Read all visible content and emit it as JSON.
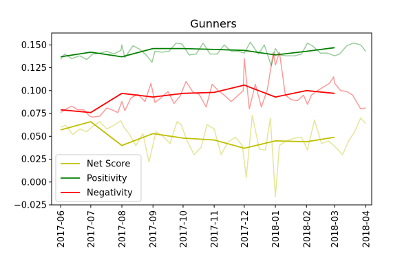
{
  "chart_data": {
    "type": "line",
    "title": "Gunners",
    "xlabel": "",
    "ylabel": "",
    "x_range": [
      "2017-05-23",
      "2018-04-07"
    ],
    "ylim": [
      -0.025,
      0.163
    ],
    "x_ticks": [
      "2017-06",
      "2017-07",
      "2017-08",
      "2017-09",
      "2017-10",
      "2017-11",
      "2017-12",
      "2018-01",
      "2018-02",
      "2018-03",
      "2018-04"
    ],
    "x_tick_dates": [
      "2017-06-01",
      "2017-07-01",
      "2017-08-01",
      "2017-09-01",
      "2017-10-01",
      "2017-11-01",
      "2017-12-01",
      "2018-01-01",
      "2018-02-01",
      "2018-03-01",
      "2018-04-01"
    ],
    "y_ticks": [
      -0.025,
      0.0,
      0.025,
      0.05,
      0.075,
      0.1,
      0.125,
      0.15
    ],
    "y_tick_labels": [
      "−0.025",
      "0.000",
      "0.025",
      "0.050",
      "0.075",
      "0.100",
      "0.125",
      "0.150"
    ],
    "legend": {
      "position": "lower-left",
      "entries": [
        "Net Score",
        "Positivity",
        "Negativity"
      ]
    },
    "grid": false,
    "series": [
      {
        "name": "Net Score",
        "kind": "raw",
        "color": "#bfbf00",
        "alpha": 0.4,
        "x": [
          "2017-06-01",
          "2017-06-06",
          "2017-06-13",
          "2017-06-20",
          "2017-06-27",
          "2017-07-03",
          "2017-07-10",
          "2017-07-17",
          "2017-07-24",
          "2017-07-31",
          "2017-08-03",
          "2017-08-08",
          "2017-08-15",
          "2017-08-22",
          "2017-08-28",
          "2017-09-04",
          "2017-09-11",
          "2017-09-18",
          "2017-09-25",
          "2017-09-29",
          "2017-10-05",
          "2017-10-12",
          "2017-10-19",
          "2017-10-25",
          "2017-11-01",
          "2017-11-08",
          "2017-11-15",
          "2017-11-22",
          "2017-11-29",
          "2017-12-03",
          "2017-12-09",
          "2017-12-16",
          "2017-12-22",
          "2017-12-27",
          "2018-01-01",
          "2018-01-05",
          "2018-01-12",
          "2018-01-20",
          "2018-01-27",
          "2018-02-02",
          "2018-02-09",
          "2018-02-16",
          "2018-02-23",
          "2018-03-02",
          "2018-03-09",
          "2018-03-15",
          "2018-03-21",
          "2018-03-27",
          "2018-04-01"
        ],
        "values": [
          0.06,
          0.062,
          0.052,
          0.058,
          0.055,
          0.061,
          0.066,
          0.058,
          0.062,
          0.067,
          0.06,
          0.053,
          0.04,
          0.053,
          0.022,
          0.055,
          0.05,
          0.042,
          0.066,
          0.063,
          0.045,
          0.03,
          0.038,
          0.063,
          0.058,
          0.03,
          0.044,
          0.049,
          0.04,
          0.005,
          0.073,
          0.036,
          0.035,
          0.07,
          -0.016,
          0.04,
          0.045,
          0.048,
          0.049,
          0.035,
          0.068,
          0.042,
          0.045,
          0.038,
          0.03,
          0.045,
          0.055,
          0.07,
          0.064
        ]
      },
      {
        "name": "Net Score",
        "kind": "smoothed",
        "color": "#bfbf00",
        "alpha": 1,
        "x": [
          "2017-06-01",
          "2017-07-01",
          "2017-08-01",
          "2017-09-01",
          "2017-10-01",
          "2017-11-01",
          "2017-12-01",
          "2018-01-01",
          "2018-02-01",
          "2018-03-01"
        ],
        "values": [
          0.057,
          0.066,
          0.04,
          0.053,
          0.048,
          0.046,
          0.037,
          0.045,
          0.044,
          0.049
        ]
      },
      {
        "name": "Positivity",
        "kind": "raw",
        "color": "#008000",
        "alpha": 0.4,
        "x": [
          "2017-06-01",
          "2017-06-05",
          "2017-06-12",
          "2017-06-20",
          "2017-06-27",
          "2017-07-03",
          "2017-07-10",
          "2017-07-17",
          "2017-07-24",
          "2017-07-31",
          "2017-08-01",
          "2017-08-04",
          "2017-08-12",
          "2017-08-19",
          "2017-08-26",
          "2017-08-31",
          "2017-09-03",
          "2017-09-10",
          "2017-09-17",
          "2017-09-24",
          "2017-09-30",
          "2017-10-07",
          "2017-10-14",
          "2017-10-21",
          "2017-10-28",
          "2017-11-04",
          "2017-11-11",
          "2017-11-18",
          "2017-11-25",
          "2017-12-01",
          "2017-12-07",
          "2017-12-15",
          "2017-12-21",
          "2017-12-28",
          "2018-01-01",
          "2018-01-05",
          "2018-01-12",
          "2018-01-20",
          "2018-01-27",
          "2018-02-02",
          "2018-02-08",
          "2018-02-15",
          "2018-02-22",
          "2018-03-01",
          "2018-03-06",
          "2018-03-13",
          "2018-03-20",
          "2018-03-27",
          "2018-04-01"
        ],
        "values": [
          0.134,
          0.14,
          0.135,
          0.138,
          0.134,
          0.14,
          0.141,
          0.143,
          0.14,
          0.144,
          0.15,
          0.136,
          0.149,
          0.145,
          0.138,
          0.131,
          0.143,
          0.142,
          0.143,
          0.152,
          0.151,
          0.139,
          0.14,
          0.152,
          0.14,
          0.14,
          0.15,
          0.143,
          0.143,
          0.141,
          0.153,
          0.14,
          0.15,
          0.127,
          0.146,
          0.139,
          0.138,
          0.138,
          0.14,
          0.152,
          0.148,
          0.141,
          0.141,
          0.138,
          0.14,
          0.149,
          0.152,
          0.15,
          0.143
        ]
      },
      {
        "name": "Positivity",
        "kind": "smoothed",
        "color": "#008000",
        "alpha": 1,
        "x": [
          "2017-06-01",
          "2017-07-01",
          "2017-08-01",
          "2017-09-01",
          "2017-10-01",
          "2017-11-01",
          "2017-12-01",
          "2018-01-01",
          "2018-02-01",
          "2018-03-01"
        ],
        "values": [
          0.137,
          0.142,
          0.137,
          0.146,
          0.146,
          0.145,
          0.144,
          0.139,
          0.143,
          0.147
        ]
      },
      {
        "name": "Negativity",
        "kind": "raw",
        "color": "#ff0000",
        "alpha": 0.4,
        "x": [
          "2017-06-01",
          "2017-06-05",
          "2017-06-12",
          "2017-06-18",
          "2017-06-24",
          "2017-06-30",
          "2017-07-03",
          "2017-07-10",
          "2017-07-17",
          "2017-07-22",
          "2017-07-28",
          "2017-08-01",
          "2017-08-04",
          "2017-08-10",
          "2017-08-17",
          "2017-08-24",
          "2017-08-30",
          "2017-09-03",
          "2017-09-09",
          "2017-09-16",
          "2017-09-22",
          "2017-09-28",
          "2017-10-04",
          "2017-10-11",
          "2017-10-17",
          "2017-10-24",
          "2017-10-30",
          "2017-11-05",
          "2017-11-11",
          "2017-11-18",
          "2017-11-24",
          "2017-11-30",
          "2017-12-01",
          "2017-12-06",
          "2017-12-12",
          "2017-12-18",
          "2017-12-24",
          "2017-12-30",
          "2018-01-01",
          "2018-01-05",
          "2018-01-11",
          "2018-01-17",
          "2018-01-23",
          "2018-01-29",
          "2018-02-02",
          "2018-02-06",
          "2018-02-12",
          "2018-02-18",
          "2018-02-24",
          "2018-02-28",
          "2018-03-01",
          "2018-03-07",
          "2018-03-13",
          "2018-03-19",
          "2018-03-27",
          "2018-04-01"
        ],
        "values": [
          0.076,
          0.079,
          0.083,
          0.079,
          0.079,
          0.072,
          0.071,
          0.072,
          0.081,
          0.079,
          0.076,
          0.088,
          0.078,
          0.092,
          0.096,
          0.088,
          0.108,
          0.087,
          0.092,
          0.099,
          0.086,
          0.094,
          0.11,
          0.098,
          0.096,
          0.082,
          0.107,
          0.1,
          0.095,
          0.088,
          0.094,
          0.1,
          0.135,
          0.08,
          0.107,
          0.082,
          0.101,
          0.142,
          0.128,
          0.142,
          0.095,
          0.09,
          0.089,
          0.095,
          0.085,
          0.095,
          0.1,
          0.104,
          0.108,
          0.115,
          0.108,
          0.1,
          0.099,
          0.095,
          0.08,
          0.081
        ]
      },
      {
        "name": "Negativity",
        "kind": "smoothed",
        "color": "#ff0000",
        "alpha": 1,
        "x": [
          "2017-06-01",
          "2017-07-01",
          "2017-08-01",
          "2017-09-01",
          "2017-10-01",
          "2017-11-01",
          "2017-12-01",
          "2018-01-01",
          "2018-02-01",
          "2018-03-01"
        ],
        "values": [
          0.079,
          0.076,
          0.097,
          0.093,
          0.097,
          0.098,
          0.106,
          0.093,
          0.1,
          0.097
        ]
      }
    ]
  }
}
